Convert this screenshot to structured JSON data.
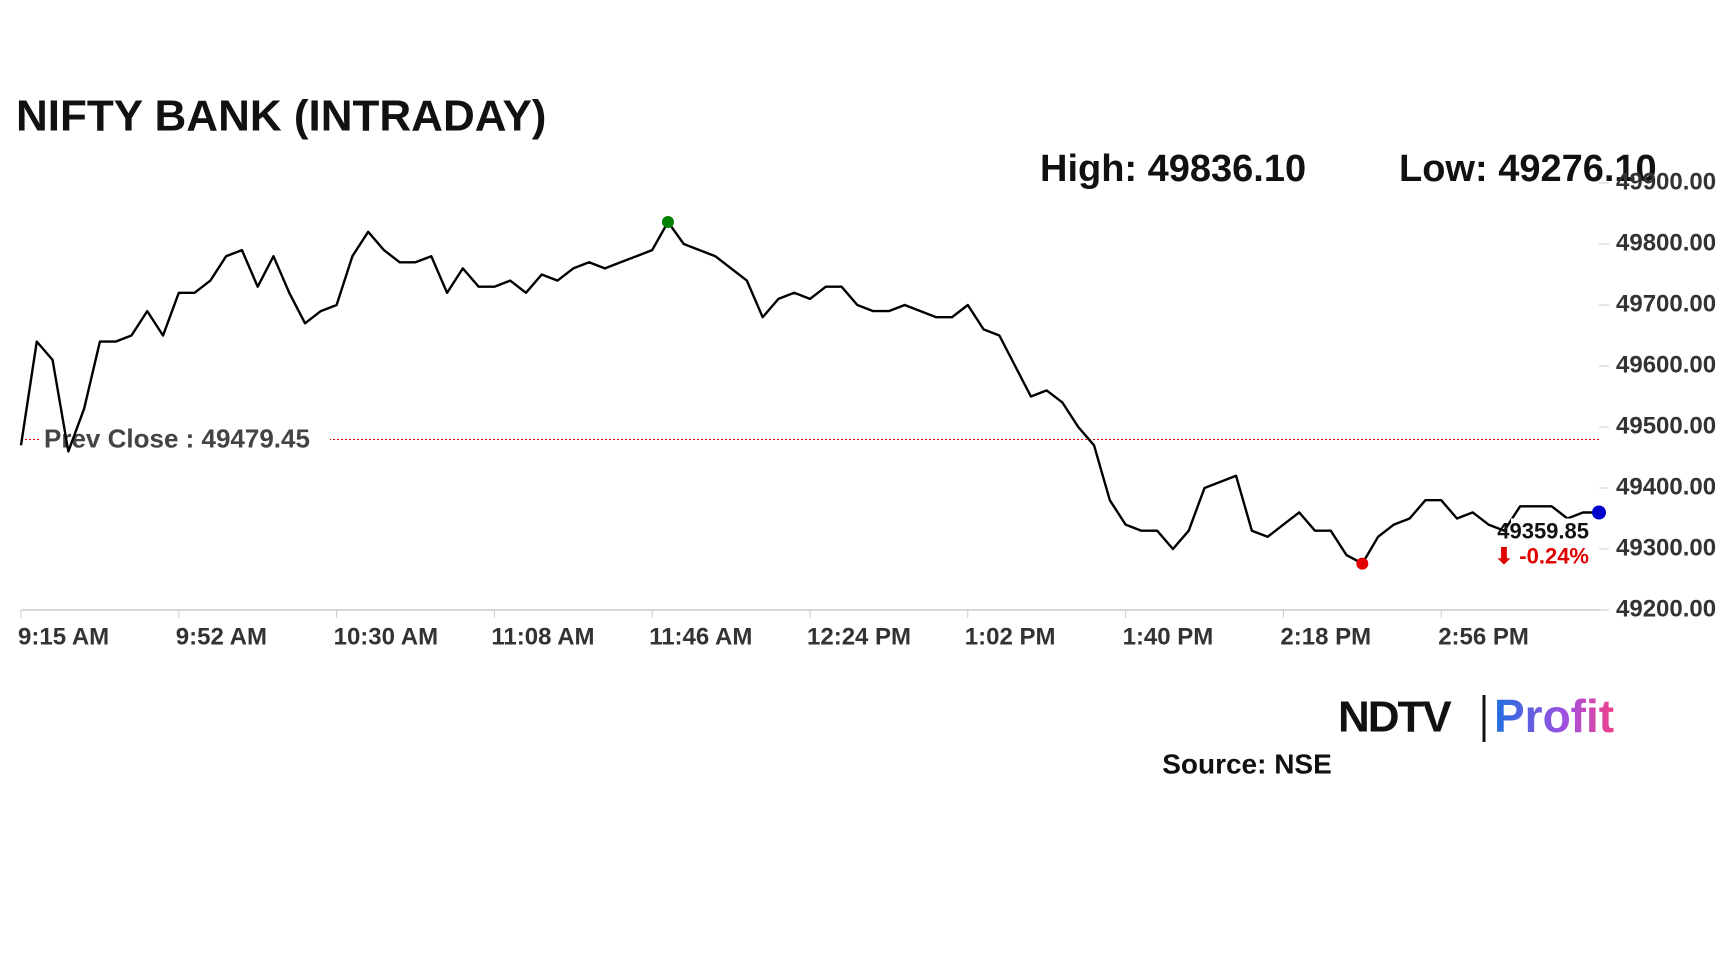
{
  "chart_data": {
    "type": "line",
    "title": "NIFTY BANK (INTRADAY)",
    "high_label": "High: 49836.10",
    "low_label": "Low: 49276.10",
    "prev_close": {
      "value": 49479.45,
      "label": "Prev Close : 49479.45"
    },
    "change_label": "⬇ -0.24%",
    "source": "Source: NSE",
    "logo": {
      "left": "NDTV",
      "right": "Profit"
    },
    "categories": [
      "9:15 AM",
      null,
      null,
      null,
      null,
      null,
      null,
      null,
      null,
      null,
      "9:52 AM",
      null,
      null,
      null,
      null,
      null,
      null,
      null,
      null,
      null,
      "10:30 AM",
      null,
      null,
      null,
      null,
      null,
      null,
      null,
      null,
      null,
      "11:08 AM",
      null,
      null,
      null,
      null,
      null,
      null,
      null,
      null,
      null,
      "11:46 AM",
      null,
      null,
      null,
      null,
      null,
      null,
      null,
      null,
      null,
      "12:24 PM",
      null,
      null,
      null,
      null,
      null,
      null,
      null,
      null,
      null,
      "1:02 PM",
      null,
      null,
      null,
      null,
      null,
      null,
      null,
      null,
      null,
      "1:40 PM",
      null,
      null,
      null,
      null,
      null,
      null,
      null,
      null,
      null,
      "2:18 PM",
      null,
      null,
      null,
      null,
      null,
      null,
      null,
      null,
      null,
      "2:56 PM",
      null,
      null,
      null,
      null,
      null,
      null,
      null,
      null,
      null,
      null
    ],
    "series": [
      {
        "name": "NIFTY BANK",
        "color": "#000000",
        "values": [
          49470,
          49640,
          49610,
          49460,
          49530,
          49640,
          49640,
          49650,
          49690,
          49650,
          49720,
          49720,
          49740,
          49780,
          49790,
          49730,
          49780,
          49720,
          49670,
          49690,
          49700,
          49780,
          49820,
          49790,
          49770,
          49770,
          49780,
          49720,
          49760,
          49730,
          49730,
          49740,
          49720,
          49750,
          49740,
          49760,
          49770,
          49760,
          49770,
          49780,
          49790,
          49836.1,
          49800,
          49790,
          49780,
          49760,
          49740,
          49680,
          49710,
          49720,
          49710,
          49730,
          49730,
          49700,
          49690,
          49690,
          49700,
          49690,
          49680,
          49680,
          49700,
          49660,
          49650,
          49600,
          49550,
          49560,
          49540,
          49500,
          49470,
          49380,
          49340,
          49330,
          49330,
          49300,
          49330,
          49400,
          49410,
          49420,
          49330,
          49320,
          49340,
          49360,
          49330,
          49330,
          49290,
          49276.1,
          49320,
          49340,
          49350,
          49380,
          49380,
          49350,
          49360,
          49340,
          49330,
          49370,
          49370,
          49370,
          49350,
          49360,
          49359.85
        ]
      }
    ],
    "high_index_color": "#008000",
    "low_index_color": "#e00000",
    "last_color": "#0000cc",
    "ylim": [
      49200,
      49900
    ],
    "yticks": [
      {
        "value": 49200,
        "label": "49200.00"
      },
      {
        "value": 49300,
        "label": "49300.00"
      },
      {
        "value": 49400,
        "label": "49400.00"
      },
      {
        "value": 49500,
        "label": "49500.00"
      },
      {
        "value": 49600,
        "label": "49600.00"
      },
      {
        "value": 49700,
        "label": "49700.00"
      },
      {
        "value": 49800,
        "label": "49800.00"
      },
      {
        "value": 49900,
        "label": "49900.00"
      }
    ]
  }
}
